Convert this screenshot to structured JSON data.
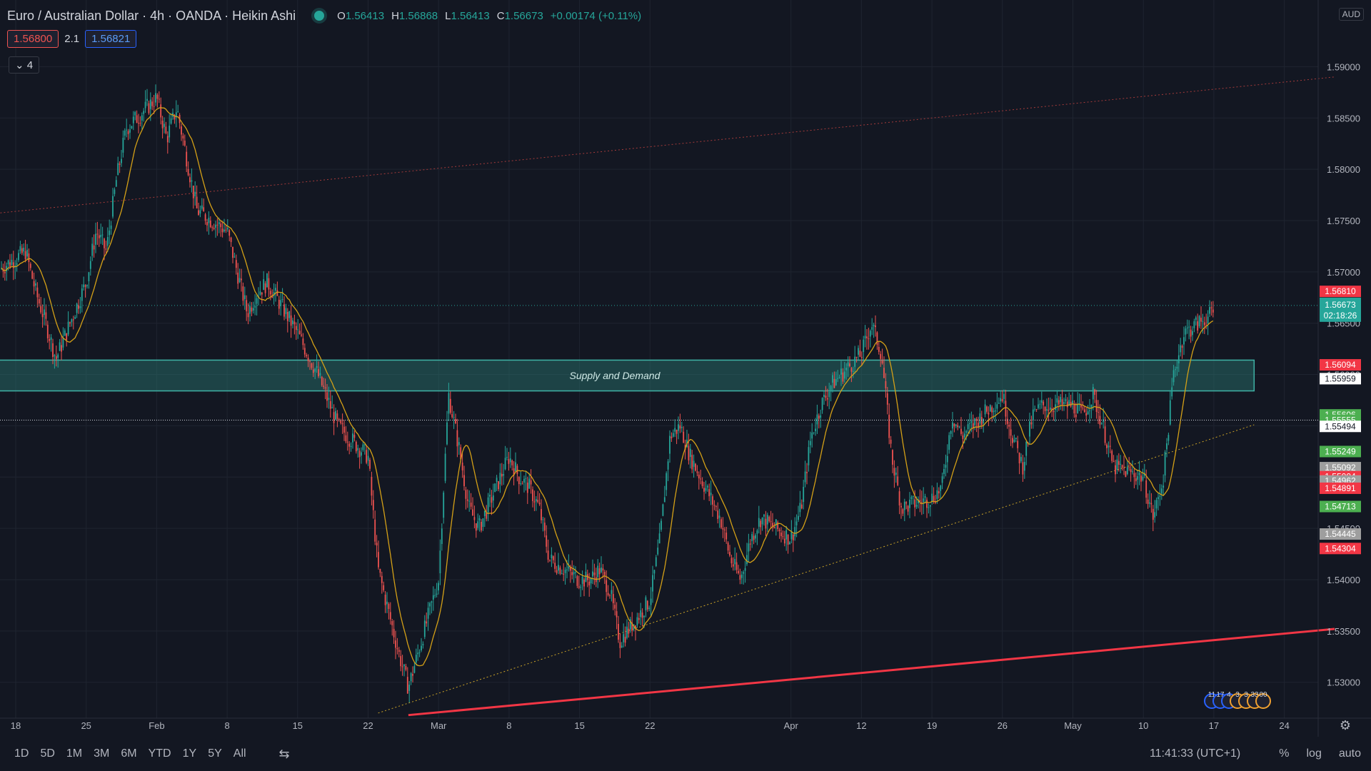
{
  "header": {
    "symbol": "Euro / Australian Dollar · 4h · OANDA · Heikin Ashi",
    "o_label": "O",
    "o_value": "1.56413",
    "h_label": "H",
    "h_value": "1.56868",
    "l_label": "L",
    "l_value": "1.56413",
    "c_label": "C",
    "c_value": "1.56673",
    "change": "+0.00174 (+0.11%)",
    "sell_price": "1.56800",
    "spread": "2.1",
    "buy_price": "1.56821",
    "indicator_count": "4",
    "currency": "AUD"
  },
  "bottom": {
    "timeframes": [
      "1D",
      "5D",
      "1M",
      "3M",
      "6M",
      "YTD",
      "1Y",
      "5Y",
      "All"
    ],
    "clock": "11:41:33 (UTC+1)",
    "percent": "%",
    "log": "log",
    "auto": "auto"
  },
  "colors": {
    "background": "#131722",
    "up": "#26a69a",
    "down": "#ef5350",
    "ma": "#d4a017",
    "grid": "#1f2430",
    "zone": "#2a7b74"
  },
  "chart_data": {
    "type": "candlestick",
    "title": "Euro / Australian Dollar · 4h · OANDA · Heikin Ashi",
    "ylim": [
      1.5265,
      1.5965
    ],
    "y_ticks": [
      "1.59000",
      "1.58500",
      "1.58000",
      "1.57500",
      "1.57000",
      "1.56500",
      "1.56000",
      "1.55500",
      "1.55000",
      "1.54500",
      "1.54000",
      "1.53500",
      "1.53000"
    ],
    "y_tick_values": [
      1.59,
      1.585,
      1.58,
      1.575,
      1.57,
      1.565,
      1.56,
      1.555,
      1.55,
      1.545,
      1.54,
      1.535,
      1.53
    ],
    "x_ticks": [
      "18",
      "25",
      "Feb",
      "8",
      "15",
      "22",
      "Mar",
      "8",
      "15",
      "22",
      "Apr",
      "12",
      "19",
      "26",
      "May",
      "10",
      "17",
      "24"
    ],
    "x_tick_dates": [
      "2021-01-18",
      "2021-01-25",
      "2021-02-01",
      "2021-02-08",
      "2021-02-15",
      "2021-02-22",
      "2021-03-01",
      "2021-03-08",
      "2021-03-15",
      "2021-03-22",
      "2021-04-05",
      "2021-04-12",
      "2021-04-19",
      "2021-04-26",
      "2021-05-03",
      "2021-05-10",
      "2021-05-17",
      "2021-05-24"
    ],
    "price_path": [
      [
        "2021-01-14",
        1.565
      ],
      [
        "2021-01-16",
        1.57
      ],
      [
        "2021-01-19",
        1.572
      ],
      [
        "2021-01-20",
        1.568
      ],
      [
        "2021-01-21",
        1.565
      ],
      [
        "2021-01-22",
        1.5615
      ],
      [
        "2021-01-25",
        1.569
      ],
      [
        "2021-01-26",
        1.574
      ],
      [
        "2021-01-27",
        1.572
      ],
      [
        "2021-01-28",
        1.579
      ],
      [
        "2021-01-29",
        1.584
      ],
      [
        "2021-02-01",
        1.587
      ],
      [
        "2021-02-02",
        1.583
      ],
      [
        "2021-02-03",
        1.586
      ],
      [
        "2021-02-04",
        1.581
      ],
      [
        "2021-02-05",
        1.576
      ],
      [
        "2021-02-08",
        1.574
      ],
      [
        "2021-02-09",
        1.57
      ],
      [
        "2021-02-10",
        1.566
      ],
      [
        "2021-02-11",
        1.568
      ],
      [
        "2021-02-12",
        1.569
      ],
      [
        "2021-02-15",
        1.564
      ],
      [
        "2021-02-16",
        1.562
      ],
      [
        "2021-02-17",
        1.56
      ],
      [
        "2021-02-18",
        1.5575
      ],
      [
        "2021-02-19",
        1.555
      ],
      [
        "2021-02-22",
        1.552
      ],
      [
        "2021-02-23",
        1.541
      ],
      [
        "2021-02-24",
        1.537
      ],
      [
        "2021-02-25",
        1.533
      ],
      [
        "2021-02-26",
        1.5295
      ],
      [
        "2021-03-01",
        1.54
      ],
      [
        "2021-03-02",
        1.558
      ],
      [
        "2021-03-03",
        1.553
      ],
      [
        "2021-03-04",
        1.547
      ],
      [
        "2021-03-05",
        1.545
      ],
      [
        "2021-03-08",
        1.552
      ],
      [
        "2021-03-09",
        1.55
      ],
      [
        "2021-03-10",
        1.549
      ],
      [
        "2021-03-11",
        1.547
      ],
      [
        "2021-03-12",
        1.542
      ],
      [
        "2021-03-15",
        1.54
      ],
      [
        "2021-03-16",
        1.54
      ],
      [
        "2021-03-17",
        1.541
      ],
      [
        "2021-03-18",
        1.539
      ],
      [
        "2021-03-19",
        1.534
      ],
      [
        "2021-03-22",
        1.538
      ],
      [
        "2021-03-23",
        1.544
      ],
      [
        "2021-03-24",
        1.554
      ],
      [
        "2021-03-25",
        1.555
      ],
      [
        "2021-03-26",
        1.552
      ],
      [
        "2021-03-29",
        1.546
      ],
      [
        "2021-03-30",
        1.542
      ],
      [
        "2021-03-31",
        1.54
      ],
      [
        "2021-04-01",
        1.544
      ],
      [
        "2021-04-02",
        1.546
      ],
      [
        "2021-04-05",
        1.544
      ],
      [
        "2021-04-06",
        1.547
      ],
      [
        "2021-04-07",
        1.554
      ],
      [
        "2021-04-08",
        1.557
      ],
      [
        "2021-04-09",
        1.559
      ],
      [
        "2021-04-12",
        1.562
      ],
      [
        "2021-04-13",
        1.565
      ],
      [
        "2021-04-14",
        1.562
      ],
      [
        "2021-04-15",
        1.552
      ],
      [
        "2021-04-16",
        1.547
      ],
      [
        "2021-04-19",
        1.548
      ],
      [
        "2021-04-20",
        1.549
      ],
      [
        "2021-04-21",
        1.556
      ],
      [
        "2021-04-22",
        1.554
      ],
      [
        "2021-04-23",
        1.555
      ],
      [
        "2021-04-26",
        1.558
      ],
      [
        "2021-04-27",
        1.554
      ],
      [
        "2021-04-28",
        1.551
      ],
      [
        "2021-04-29",
        1.556
      ],
      [
        "2021-04-30",
        1.557
      ],
      [
        "2021-05-03",
        1.557
      ],
      [
        "2021-05-04",
        1.556
      ],
      [
        "2021-05-05",
        1.558
      ],
      [
        "2021-05-06",
        1.555
      ],
      [
        "2021-05-07",
        1.551
      ],
      [
        "2021-05-10",
        1.55
      ],
      [
        "2021-05-11",
        1.546
      ],
      [
        "2021-05-12",
        1.55
      ],
      [
        "2021-05-13",
        1.56
      ],
      [
        "2021-05-14",
        1.564
      ],
      [
        "2021-05-17",
        1.566
      ],
      [
        "2021-05-18",
        1.5667
      ]
    ],
    "supply_demand_zone": {
      "label": "Supply and Demand",
      "high": 1.5614,
      "low": 1.5584,
      "from": "2021-01-14",
      "to": "2021-05-21"
    },
    "lines": [
      {
        "kind": "trend-support",
        "color": "#f23645",
        "from": [
          "2021-02-26",
          1.5268
        ],
        "to": [
          "2021-05-29",
          1.5352
        ]
      },
      {
        "kind": "trend-dotted",
        "color": "#c9a227",
        "from": [
          "2021-02-23",
          1.527
        ],
        "to": [
          "2021-05-21",
          1.5551
        ]
      },
      {
        "kind": "channel-top-dotted",
        "color": "#a33a3a",
        "from": [
          "2021-01-14",
          1.5755
        ],
        "to": [
          "2021-05-29",
          1.589
        ]
      }
    ],
    "current_price": 1.56673,
    "current_countdown": "02:18:26",
    "price_labels": [
      {
        "value": "1.56810",
        "y": 1.5681,
        "bg": "#f23645",
        "fg": "#ffffff"
      },
      {
        "value": "1.56094",
        "y": 1.56094,
        "bg": "#f23645",
        "fg": "#ffffff"
      },
      {
        "value": "1.55959",
        "y": 1.55959,
        "bg": "#ffffff",
        "fg": "#131722"
      },
      {
        "value": "1.55606",
        "y": 1.55606,
        "bg": "#4caf50",
        "fg": "#ffffff"
      },
      {
        "value": "1.55555",
        "y": 1.55555,
        "bg": "#4caf50",
        "fg": "#ffffff"
      },
      {
        "value": "1.55494",
        "y": 1.55494,
        "bg": "#ffffff",
        "fg": "#131722"
      },
      {
        "value": "1.55249",
        "y": 1.55249,
        "bg": "#4caf50",
        "fg": "#ffffff"
      },
      {
        "value": "1.55092",
        "y": 1.55092,
        "bg": "#9e9e9e",
        "fg": "#ffffff"
      },
      {
        "value": "1.55004",
        "y": 1.55004,
        "bg": "#f23645",
        "fg": "#ffffff"
      },
      {
        "value": "1.54962",
        "y": 1.54962,
        "bg": "#9e9e9e",
        "fg": "#ffffff"
      },
      {
        "value": "1.54891",
        "y": 1.54891,
        "bg": "#f23645",
        "fg": "#ffffff"
      },
      {
        "value": "1.54713",
        "y": 1.54713,
        "bg": "#4caf50",
        "fg": "#ffffff"
      },
      {
        "value": "1.54445",
        "y": 1.54445,
        "bg": "#9e9e9e",
        "fg": "#ffffff"
      },
      {
        "value": "1.54304",
        "y": 1.54304,
        "bg": "#f23645",
        "fg": "#ffffff"
      }
    ],
    "event_labels": [
      "11",
      "17",
      "4",
      "3",
      "3",
      "33",
      "00"
    ]
  }
}
